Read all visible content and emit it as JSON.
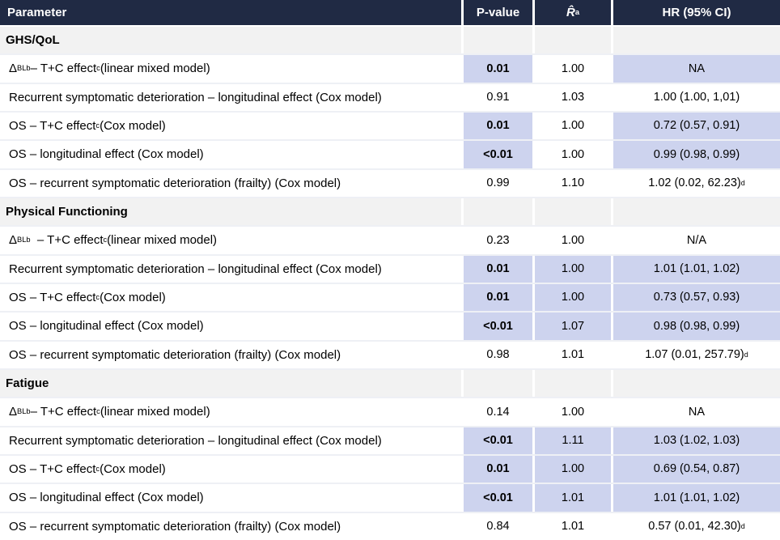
{
  "colors": {
    "header_bg": "#202A44",
    "header_text": "#FFFFFF",
    "section_bg": "#F2F2F2",
    "highlight_bg": "#CDD3EE",
    "row_bg": "#FFFFFF",
    "row_separator": "#EEF0F5",
    "text": "#000000"
  },
  "table": {
    "columns": [
      {
        "label": "Parameter"
      },
      {
        "label": "P-value"
      },
      {
        "label": "R̂",
        "sup": "a"
      },
      {
        "label": "HR (95% CI)"
      }
    ],
    "sections": [
      {
        "title": "GHS/QoL",
        "rows": [
          {
            "label_parts": [
              {
                "t": "Δ"
              },
              {
                "sub": "BL"
              },
              {
                "sup": "b"
              },
              {
                "t": " – T+C effect"
              },
              {
                "sup": "c"
              },
              {
                "t": " (linear mixed model)"
              }
            ],
            "p": "0.01",
            "p_bold": true,
            "p_hl": true,
            "r": "1.00",
            "r_hl": false,
            "hr": "NA",
            "hr_hl": true,
            "hr_sup": ""
          },
          {
            "label_parts": [
              {
                "t": "Recurrent symptomatic deterioration – longitudinal effect (Cox model)"
              }
            ],
            "p": "0.91",
            "p_bold": false,
            "p_hl": false,
            "r": "1.03",
            "r_hl": false,
            "hr": "1.00 (1.00, 1,01)",
            "hr_hl": false,
            "hr_sup": ""
          },
          {
            "label_parts": [
              {
                "t": "OS – T+C effect"
              },
              {
                "sup": "c"
              },
              {
                "t": " (Cox model)"
              }
            ],
            "p": "0.01",
            "p_bold": true,
            "p_hl": true,
            "r": "1.00",
            "r_hl": false,
            "hr": "0.72 (0.57, 0.91)",
            "hr_hl": true,
            "hr_sup": ""
          },
          {
            "label_parts": [
              {
                "t": "OS – longitudinal effect (Cox model)"
              }
            ],
            "p": "<0.01",
            "p_bold": true,
            "p_hl": true,
            "r": "1.00",
            "r_hl": false,
            "hr": "0.99 (0.98, 0.99)",
            "hr_hl": true,
            "hr_sup": ""
          },
          {
            "label_parts": [
              {
                "t": "OS – recurrent symptomatic deterioration (frailty) (Cox model)"
              }
            ],
            "p": "0.99",
            "p_bold": false,
            "p_hl": false,
            "r": "1.10",
            "r_hl": false,
            "hr": "1.02 (0.02, 62.23)",
            "hr_hl": false,
            "hr_sup": "d"
          }
        ]
      },
      {
        "title": "Physical Functioning",
        "rows": [
          {
            "label_parts": [
              {
                "t": "Δ"
              },
              {
                "sub": "BL"
              },
              {
                "sup": "b"
              },
              {
                "t": "  – T+C effect"
              },
              {
                "sup": "c"
              },
              {
                "t": " (linear mixed model)"
              }
            ],
            "p": "0.23",
            "p_bold": false,
            "p_hl": false,
            "r": "1.00",
            "r_hl": false,
            "hr": "N/A",
            "hr_hl": false,
            "hr_sup": ""
          },
          {
            "label_parts": [
              {
                "t": "Recurrent symptomatic deterioration – longitudinal effect (Cox model)"
              }
            ],
            "p": "0.01",
            "p_bold": true,
            "p_hl": true,
            "r": "1.00",
            "r_hl": true,
            "hr": "1.01 (1.01, 1.02)",
            "hr_hl": true,
            "hr_sup": ""
          },
          {
            "label_parts": [
              {
                "t": "OS – T+C effect"
              },
              {
                "sup": "c"
              },
              {
                "t": " (Cox model)"
              }
            ],
            "p": "0.01",
            "p_bold": true,
            "p_hl": true,
            "r": "1.00",
            "r_hl": true,
            "hr": "0.73 (0.57, 0.93)",
            "hr_hl": true,
            "hr_sup": ""
          },
          {
            "label_parts": [
              {
                "t": "OS – longitudinal effect (Cox model)"
              }
            ],
            "p": "<0.01",
            "p_bold": true,
            "p_hl": true,
            "r": "1.07",
            "r_hl": true,
            "hr": "0.98 (0.98, 0.99)",
            "hr_hl": true,
            "hr_sup": ""
          },
          {
            "label_parts": [
              {
                "t": "OS – recurrent symptomatic deterioration (frailty) (Cox model)"
              }
            ],
            "p": "0.98",
            "p_bold": false,
            "p_hl": false,
            "r": "1.01",
            "r_hl": false,
            "hr": "1.07 (0.01, 257.79)",
            "hr_hl": false,
            "hr_sup": "d"
          }
        ]
      },
      {
        "title": "Fatigue",
        "rows": [
          {
            "label_parts": [
              {
                "t": "Δ"
              },
              {
                "sub": "BL"
              },
              {
                "sup": "b"
              },
              {
                "t": " – T+C effect"
              },
              {
                "sup": "c"
              },
              {
                "t": " (linear mixed model)"
              }
            ],
            "p": "0.14",
            "p_bold": false,
            "p_hl": false,
            "r": "1.00",
            "r_hl": false,
            "hr": "NA",
            "hr_hl": false,
            "hr_sup": ""
          },
          {
            "label_parts": [
              {
                "t": "Recurrent symptomatic deterioration – longitudinal effect (Cox model)"
              }
            ],
            "p": "<0.01",
            "p_bold": true,
            "p_hl": true,
            "r": "1.11",
            "r_hl": true,
            "hr": "1.03 (1.02, 1.03)",
            "hr_hl": true,
            "hr_sup": ""
          },
          {
            "label_parts": [
              {
                "t": "OS – T+C effect"
              },
              {
                "sup": "c"
              },
              {
                "t": " (Cox model)"
              }
            ],
            "p": "0.01",
            "p_bold": true,
            "p_hl": true,
            "r": "1.00",
            "r_hl": true,
            "hr": "0.69 (0.54, 0.87)",
            "hr_hl": true,
            "hr_sup": ""
          },
          {
            "label_parts": [
              {
                "t": "OS – longitudinal effect (Cox model)"
              }
            ],
            "p": "<0.01",
            "p_bold": true,
            "p_hl": true,
            "r": "1.01",
            "r_hl": true,
            "hr": "1.01 (1.01, 1.02)",
            "hr_hl": true,
            "hr_sup": ""
          },
          {
            "label_parts": [
              {
                "t": "OS – recurrent symptomatic deterioration (frailty) (Cox model)"
              }
            ],
            "p": "0.84",
            "p_bold": false,
            "p_hl": false,
            "r": "1.01",
            "r_hl": false,
            "hr": "0.57 (0.01, 42.30)",
            "hr_hl": false,
            "hr_sup": "d"
          }
        ]
      }
    ]
  }
}
